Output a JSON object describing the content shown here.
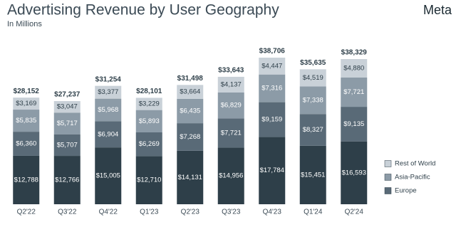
{
  "chart_data": {
    "type": "stacked-bar",
    "title": "Advertising Revenue by User Geography",
    "subtitle": "In Millions",
    "logo": "Meta",
    "categories": [
      "Q2'22",
      "Q3'22",
      "Q4'22",
      "Q1'23",
      "Q2'23",
      "Q3'23",
      "Q4'23",
      "Q1'24",
      "Q2'24"
    ],
    "series": [
      {
        "color": "#2e3f49",
        "values": [
          12788,
          12766,
          15005,
          12710,
          14131,
          14956,
          17784,
          15451,
          16593
        ],
        "value_labels": [
          "$12,788",
          "$12,766",
          "$15,005",
          "$12,710",
          "$14,131",
          "$14,956",
          "$17,784",
          "$15,451",
          "$16,593"
        ]
      },
      {
        "name": "Europe",
        "color": "#596a77",
        "values": [
          6360,
          5707,
          6904,
          6269,
          7268,
          7721,
          9159,
          8327,
          9135
        ],
        "value_labels": [
          "$6,360",
          "$5,707",
          "$6,904",
          "$6,269",
          "$7,268",
          "$7,721",
          "$9,159",
          "$8,327",
          "$9,135"
        ]
      },
      {
        "name": "Asia-Pacific",
        "color": "#8c9ba7",
        "values": [
          5835,
          5717,
          5968,
          5893,
          6435,
          6829,
          7316,
          7338,
          7721
        ],
        "value_labels": [
          "$5,835",
          "$5,717",
          "$5,968",
          "$5,893",
          "$6,435",
          "$6,829",
          "$7,316",
          "$7,338",
          "$7,721"
        ]
      },
      {
        "name": "Rest of World",
        "color": "#c9d1d8",
        "values": [
          3169,
          3047,
          3377,
          3229,
          3664,
          4137,
          4447,
          4519,
          4880
        ],
        "value_labels": [
          "$3,169",
          "$3,047",
          "$3,377",
          "$3,229",
          "$3,664",
          "$4,137",
          "$4,447",
          "$4,519",
          "$4,880"
        ]
      }
    ],
    "totals": [
      28152,
      27237,
      31254,
      28101,
      31498,
      33643,
      38706,
      35635,
      38329
    ],
    "total_labels": [
      "$28,152",
      "$27,237",
      "$31,254",
      "$28,101",
      "$31,498",
      "$33,643",
      "$38,706",
      "$35,635",
      "$38,329"
    ]
  }
}
